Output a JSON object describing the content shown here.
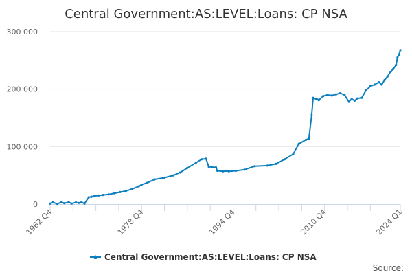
{
  "chart_data": {
    "type": "line",
    "title": "Central Government:AS:LEVEL:Loans: CP NSA",
    "xlabel": "",
    "ylabel": "",
    "x_tick_labels": [
      "1962 Q4",
      "1978 Q4",
      "1994 Q4",
      "2010 Q4",
      "2024 Q1"
    ],
    "y_tick_labels": [
      "0",
      "100 000",
      "200 000",
      "300 000"
    ],
    "y_ticks": [
      0,
      100000,
      200000,
      300000
    ],
    "ylim": [
      0,
      300000
    ],
    "xlim": [
      "1962 Q4",
      "2024 Q1"
    ],
    "grid": "horizontal",
    "legend": {
      "position": "bottom",
      "entries": [
        "Central Government:AS:LEVEL:Loans: CP NSA"
      ]
    },
    "credit": "Source:",
    "colors": {
      "series": "#0a7fbf",
      "grid": "#e6e6e6",
      "axis": "#ccd6eb"
    },
    "series": [
      {
        "name": "Central Government:AS:LEVEL:Loans: CP NSA",
        "x": [
          "1962 Q4",
          "1963 Q2",
          "1964 Q1",
          "1964 Q4",
          "1965 Q2",
          "1966 Q1",
          "1966 Q3",
          "1967 Q2",
          "1967 Q4",
          "1968 Q2",
          "1968 Q4",
          "1969 Q3",
          "1970 Q1",
          "1970 Q3",
          "1971 Q2",
          "1972 Q1",
          "1973 Q1",
          "1974 Q1",
          "1975 Q1",
          "1976 Q1",
          "1977 Q1",
          "1978 Q2",
          "1978 Q4",
          "1979 Q4",
          "1981 Q1",
          "1982 Q4",
          "1984 Q2",
          "1985 Q3",
          "1986 Q4",
          "1988 Q2",
          "1989 Q2",
          "1990 Q1",
          "1990 Q3",
          "1991 Q4",
          "1992 Q1",
          "1993 Q1",
          "1993 Q3",
          "1994 Q1",
          "1995 Q2",
          "1996 Q4",
          "1998 Q3",
          "2000 Q4",
          "2002 Q2",
          "2003 Q4",
          "2005 Q2",
          "2006 Q2",
          "2007 Q3",
          "2008 Q1",
          "2008 Q3",
          "2008 Q4",
          "2009 Q2",
          "2009 Q3",
          "2009 Q4",
          "2010 Q3",
          "2011 Q2",
          "2012 Q1",
          "2012 Q4",
          "2013 Q3",
          "2014 Q2",
          "2015 Q1",
          "2015 Q3",
          "2016 Q1",
          "2016 Q3",
          "2017 Q2",
          "2018 Q1",
          "2018 Q4",
          "2019 Q3",
          "2020 Q2",
          "2020 Q4",
          "2021 Q2",
          "2021 Q4",
          "2022 Q2",
          "2022 Q4",
          "2023 Q2",
          "2023 Q3",
          "2023 Q4",
          "2024 Q1"
        ],
        "values": [
          1000,
          3000,
          500,
          3500,
          1500,
          3500,
          1000,
          3000,
          2000,
          3500,
          1000,
          12000,
          13000,
          14000,
          15000,
          16000,
          17000,
          19000,
          21000,
          23000,
          26000,
          31000,
          34000,
          37000,
          43000,
          46000,
          50000,
          55000,
          63000,
          72000,
          78000,
          79000,
          65000,
          64000,
          58000,
          57000,
          58000,
          57000,
          58000,
          60000,
          66000,
          67000,
          70000,
          78000,
          87000,
          105000,
          112000,
          114000,
          155000,
          185000,
          183000,
          182000,
          181000,
          188000,
          190000,
          189000,
          191000,
          193000,
          190000,
          178000,
          183000,
          180000,
          184000,
          185000,
          198000,
          205000,
          208000,
          212000,
          208000,
          216000,
          222000,
          230000,
          235000,
          242000,
          255000,
          260000,
          268000
        ]
      }
    ]
  }
}
